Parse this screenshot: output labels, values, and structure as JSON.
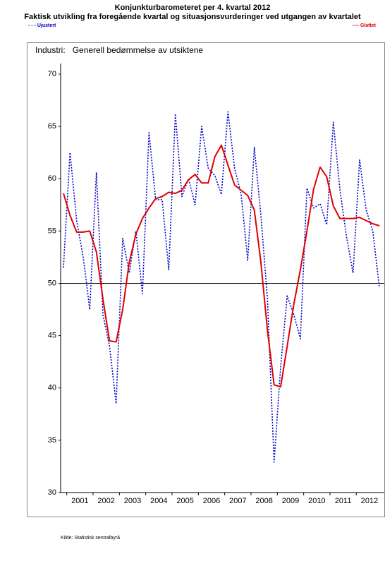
{
  "chart_data": {
    "type": "line",
    "title": "Konjunkturbarometeret per 4. kvartal 2012",
    "subtitle": "Faktisk utvikling fra foregående kvartal og situasjonsvurderinger ved utgangen av kvartalet",
    "panel_label": "Industri:   Generell bedømmelse av utsiktene",
    "source": "Kilde: Statistisk sentralbyrå",
    "categories": [
      null,
      null,
      null,
      null,
      null,
      null,
      null,
      null,
      null,
      null,
      null,
      null,
      null,
      null,
      null,
      null,
      null,
      null,
      null,
      null,
      null,
      null,
      null,
      null,
      null,
      null,
      null,
      null,
      null,
      null,
      null,
      null,
      null,
      null,
      null,
      null,
      null,
      null,
      null,
      null,
      null,
      null,
      null,
      null,
      null,
      null,
      null,
      null,
      null
    ],
    "xticks": [
      {
        "value": 2.5,
        "label": "2001"
      },
      {
        "value": 6.5,
        "label": "2002"
      },
      {
        "value": 10.5,
        "label": "2003"
      },
      {
        "value": 14.5,
        "label": "2004"
      },
      {
        "value": 18.5,
        "label": "2005"
      },
      {
        "value": 22.5,
        "label": "2006"
      },
      {
        "value": 26.5,
        "label": "2007"
      },
      {
        "value": 30.5,
        "label": "2008"
      },
      {
        "value": 34.5,
        "label": "2009"
      },
      {
        "value": 38.5,
        "label": "2010"
      },
      {
        "value": 42.5,
        "label": "2011"
      },
      {
        "value": 46.5,
        "label": "2012"
      }
    ],
    "ylim": [
      30,
      70
    ],
    "yticks": [
      30,
      35,
      40,
      45,
      50,
      55,
      60,
      65,
      70
    ],
    "hline": 50,
    "series": [
      {
        "name": "- - - Ujustert",
        "color": "#0000cc",
        "dashed": true,
        "values": [
          51.5,
          62.5,
          56,
          52.5,
          47.5,
          60.6,
          47,
          44,
          38.5,
          54.3,
          51,
          55,
          49,
          64.4,
          58,
          58,
          51.3,
          66.2,
          58.3,
          60,
          57.5,
          65,
          61,
          60.3,
          58.5,
          66.4,
          61,
          58.5,
          52.2,
          63,
          56.5,
          48.5,
          32.9,
          42,
          48.8,
          47,
          44.7,
          59.1,
          57.2,
          57.6,
          55.6,
          65.4,
          59,
          54.5,
          51,
          61.8,
          57,
          55,
          49.6
        ]
      },
      {
        "name": "---- Glattet",
        "color": "#e00000",
        "dashed": false,
        "values": [
          58.6,
          56.5,
          54.9,
          54.9,
          55,
          53,
          48.5,
          44.5,
          44.4,
          47.5,
          52,
          54.7,
          56.2,
          57.2,
          58.1,
          58.3,
          58.7,
          58.6,
          58.9,
          59.9,
          60.4,
          59.6,
          59.6,
          62.1,
          63.2,
          61.3,
          59.4,
          58.9,
          58.4,
          57,
          52,
          45.5,
          40.3,
          40.1,
          44,
          48,
          51.3,
          55,
          59,
          61.1,
          60.2,
          57.4,
          56.2,
          56.2,
          56.2,
          56.3,
          56,
          55.7,
          55.5
        ]
      }
    ]
  }
}
